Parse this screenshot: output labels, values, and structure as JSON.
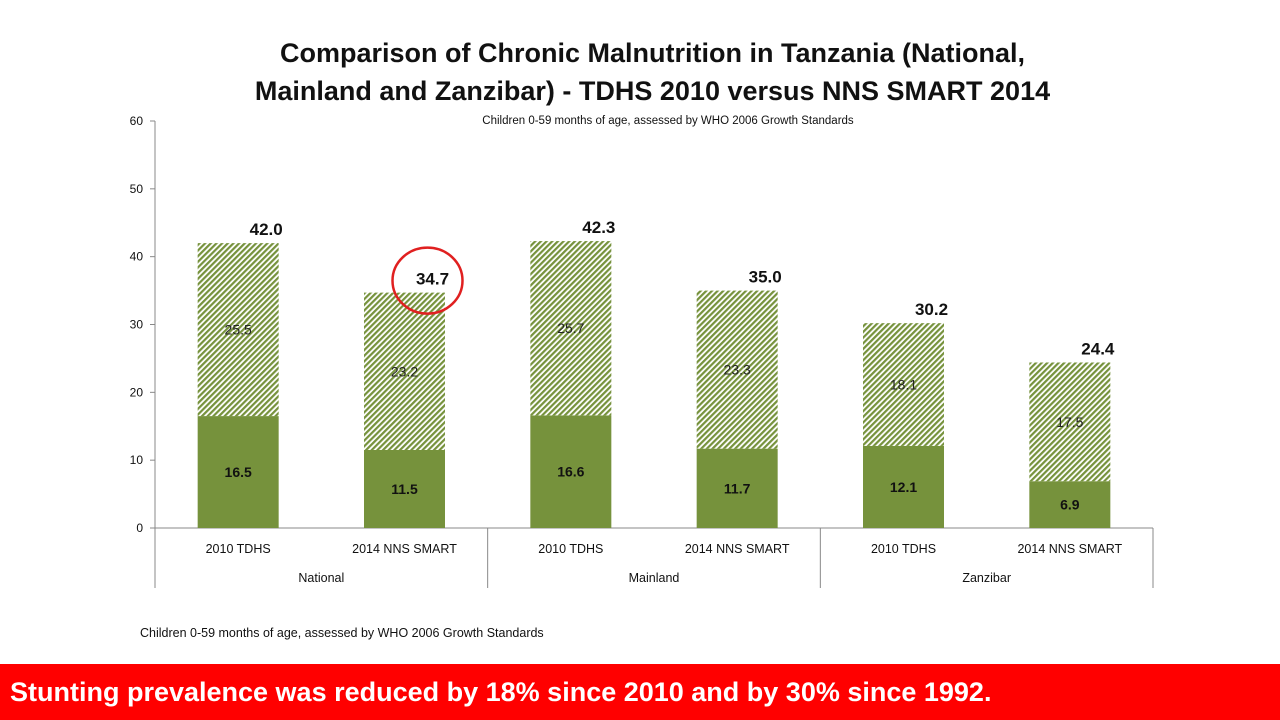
{
  "slide": {
    "title_line1": "Comparison of Chronic Malnutrition in Tanzania (National,",
    "title_line2": "Mainland and Zanzibar) - TDHS 2010 versus NNS SMART 2014",
    "subtitle": "Children 0-59 months of age, assessed by WHO 2006 Growth Standards",
    "footnote": "Children 0-59 months of age, assessed by WHO 2006 Growth Standards",
    "banner_text": "Stunting prevalence was reduced by 18% since 2010 and by 30% since 1992."
  },
  "colors": {
    "solid_bar": "#76923c",
    "hatch_bar": "#76923c",
    "highlight_circle": "#e02020",
    "banner_bg": "#ff0000"
  },
  "chart_data": {
    "type": "bar",
    "stacked": true,
    "title": "Comparison of Chronic Malnutrition in Tanzania (National, Mainland and Zanzibar) - TDHS 2010 versus NNS SMART 2014",
    "subtitle": "Children 0-59 months of age, assessed by WHO 2006 Growth Standards",
    "categories": [
      "2010 TDHS",
      "2014 NNS SMART",
      "2010 TDHS",
      "2014 NNS SMART",
      "2010 TDHS",
      "2014 NNS SMART"
    ],
    "groups": [
      {
        "label": "National",
        "categories": [
          "2010 TDHS",
          "2014 NNS SMART"
        ]
      },
      {
        "label": "Mainland",
        "categories": [
          "2010 TDHS",
          "2014 NNS SMART"
        ]
      },
      {
        "label": "Zanzibar",
        "categories": [
          "2010 TDHS",
          "2014 NNS SMART"
        ]
      }
    ],
    "series": [
      {
        "values": [
          16.5,
          11.5,
          16.6,
          11.7,
          12.1,
          6.9
        ],
        "labels": [
          "16.5",
          "11.5",
          "16.6",
          "11.7",
          "12.1",
          "6.9"
        ],
        "style": "solid"
      },
      {
        "values": [
          25.5,
          23.2,
          25.7,
          23.3,
          18.1,
          17.5
        ],
        "labels": [
          "25.5",
          "23.2",
          "25.7",
          "23.3",
          "18.1",
          "17.5"
        ],
        "style": "hatched"
      }
    ],
    "totals": [
      "42.0",
      "34.7",
      "42.3",
      "35.0",
      "30.2",
      "24.4"
    ],
    "highlighted_total_index": 1,
    "ylim": [
      0,
      60
    ],
    "yticks": [
      "0",
      "10",
      "20",
      "30",
      "40",
      "50",
      "60"
    ],
    "xlabel": "",
    "ylabel": "",
    "grid": false,
    "legend": "none"
  }
}
